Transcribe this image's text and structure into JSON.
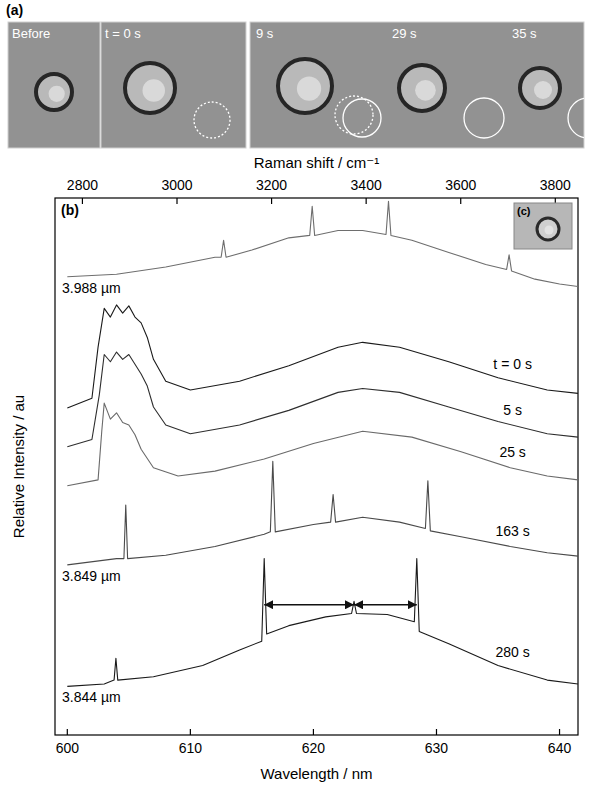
{
  "panel_a": {
    "letter": "(a)",
    "frames": [
      "Before",
      "t = 0 s",
      "9 s",
      "29 s",
      "35 s"
    ]
  },
  "chart_data": {
    "type": "line",
    "panel_letter": "(b)",
    "inset_label": "(c)",
    "x_label": "Wavelength / nm",
    "y_label": "Relative Intensity / au",
    "xlim": [
      599,
      641.5
    ],
    "xticks": [
      600,
      610,
      620,
      630,
      640
    ],
    "ylim": [
      0,
      110.5
    ],
    "tick_labels": "x",
    "grid": false,
    "top_axis": {
      "label": "Raman shift / cm⁻¹",
      "lim": [
        2742,
        3848
      ],
      "ticks": [
        2800,
        3000,
        3200,
        3400,
        3600,
        3800
      ]
    },
    "series": [
      {
        "color": "#6e6e6e",
        "x": [
          600,
          604,
          608,
          612,
          612.5,
          612.7,
          612.9,
          615,
          618,
          619.7,
          619.9,
          620.1,
          622,
          624,
          625.9,
          626.1,
          626.3,
          628,
          631,
          634,
          635.7,
          635.9,
          636.1,
          638,
          640,
          641.5
        ],
        "values": [
          94.3,
          94.8,
          96.3,
          98.3,
          98.3,
          101.8,
          98.3,
          99.8,
          102.3,
          102.8,
          108.8,
          102.8,
          103.8,
          103.8,
          103.0,
          109.8,
          102.8,
          101.8,
          99.3,
          96.8,
          95.8,
          98.8,
          95.5,
          93.8,
          92.8,
          92.3
        ]
      },
      {
        "name": "t = 0 s",
        "color": "#1a1a1a",
        "x": [
          600,
          602,
          602.5,
          603,
          603.5,
          604,
          604.5,
          605,
          605.5,
          606,
          606.5,
          607,
          608,
          610,
          614,
          618,
          622,
          624,
          627,
          631,
          635,
          639,
          641.5
        ],
        "values": [
          67.3,
          69.3,
          79.8,
          87.8,
          86.0,
          88.5,
          86.8,
          88.3,
          86.0,
          84.8,
          81.8,
          77.3,
          72.8,
          71.0,
          72.8,
          76.0,
          79.8,
          80.8,
          79.8,
          76.8,
          73.5,
          71.0,
          70.3
        ]
      },
      {
        "name": "5 s",
        "color": "#2e2e2e",
        "x": [
          600,
          602,
          602.6,
          603,
          603.5,
          604,
          604.5,
          605,
          605.5,
          606,
          606.5,
          607,
          608,
          610,
          614,
          618,
          622,
          624,
          627,
          631,
          635,
          639,
          641.5
        ],
        "values": [
          59.3,
          60.8,
          70.0,
          78.3,
          76.8,
          78.8,
          77.3,
          78.3,
          76.3,
          74.3,
          71.8,
          67.5,
          63.8,
          62.0,
          63.8,
          66.8,
          70.5,
          71.3,
          70.5,
          67.5,
          64.5,
          62.0,
          61.3
        ]
      },
      {
        "name": "25 s",
        "color": "#6a6a6a",
        "x": [
          600,
          602.5,
          602.8,
          603,
          603.5,
          604,
          604.5,
          605,
          605.5,
          606,
          607,
          609,
          612,
          616,
          620,
          624,
          628,
          632,
          636,
          639,
          641.5
        ],
        "values": [
          51.3,
          52.5,
          62.5,
          68.3,
          65.0,
          66.3,
          64.3,
          63.8,
          61.8,
          58.8,
          55.0,
          53.3,
          54.3,
          56.8,
          60.0,
          62.5,
          61.3,
          58.3,
          55.0,
          53.3,
          52.5
        ]
      },
      {
        "name": "163 s",
        "color": "#4a4a4a",
        "x": [
          600,
          604,
          604.6,
          604.75,
          604.9,
          608,
          612,
          616,
          616.5,
          616.7,
          616.9,
          620,
          621.4,
          621.6,
          621.8,
          624,
          627,
          629.1,
          629.3,
          629.5,
          632,
          636,
          639,
          641.5
        ],
        "values": [
          35.0,
          36.3,
          36.3,
          47.3,
          36.3,
          37.0,
          38.8,
          41.3,
          41.8,
          56.3,
          41.8,
          43.3,
          43.8,
          49.5,
          43.8,
          44.8,
          43.8,
          42.5,
          52.3,
          42.0,
          40.8,
          38.8,
          37.5,
          36.8
        ]
      },
      {
        "name": "280 s",
        "color": "#1a1a1a",
        "x": [
          600,
          603,
          603.8,
          603.95,
          604.1,
          607,
          611,
          614,
          615.8,
          616.0,
          616.2,
          618,
          621,
          623.1,
          623.3,
          623.5,
          626,
          628.2,
          628.4,
          628.6,
          631,
          635,
          639,
          641.5
        ],
        "values": [
          10.0,
          10.5,
          11.3,
          15.8,
          11.3,
          12.0,
          14.3,
          17.5,
          19.3,
          36.3,
          20.8,
          22.5,
          24.3,
          25.0,
          27.5,
          25.0,
          24.8,
          23.3,
          36.3,
          21.3,
          18.8,
          14.3,
          11.3,
          10.5
        ]
      }
    ],
    "annotations": [
      {
        "text": "3.988 µm",
        "series": 0
      },
      {
        "text": "3.849 µm",
        "series": 4
      },
      {
        "text": "3.844 µm",
        "series": 5
      }
    ],
    "arrows": [
      {
        "from": 616.0,
        "to": 623.3,
        "y": 26.8
      },
      {
        "from": 623.3,
        "to": 628.4,
        "y": 26.8
      }
    ]
  }
}
